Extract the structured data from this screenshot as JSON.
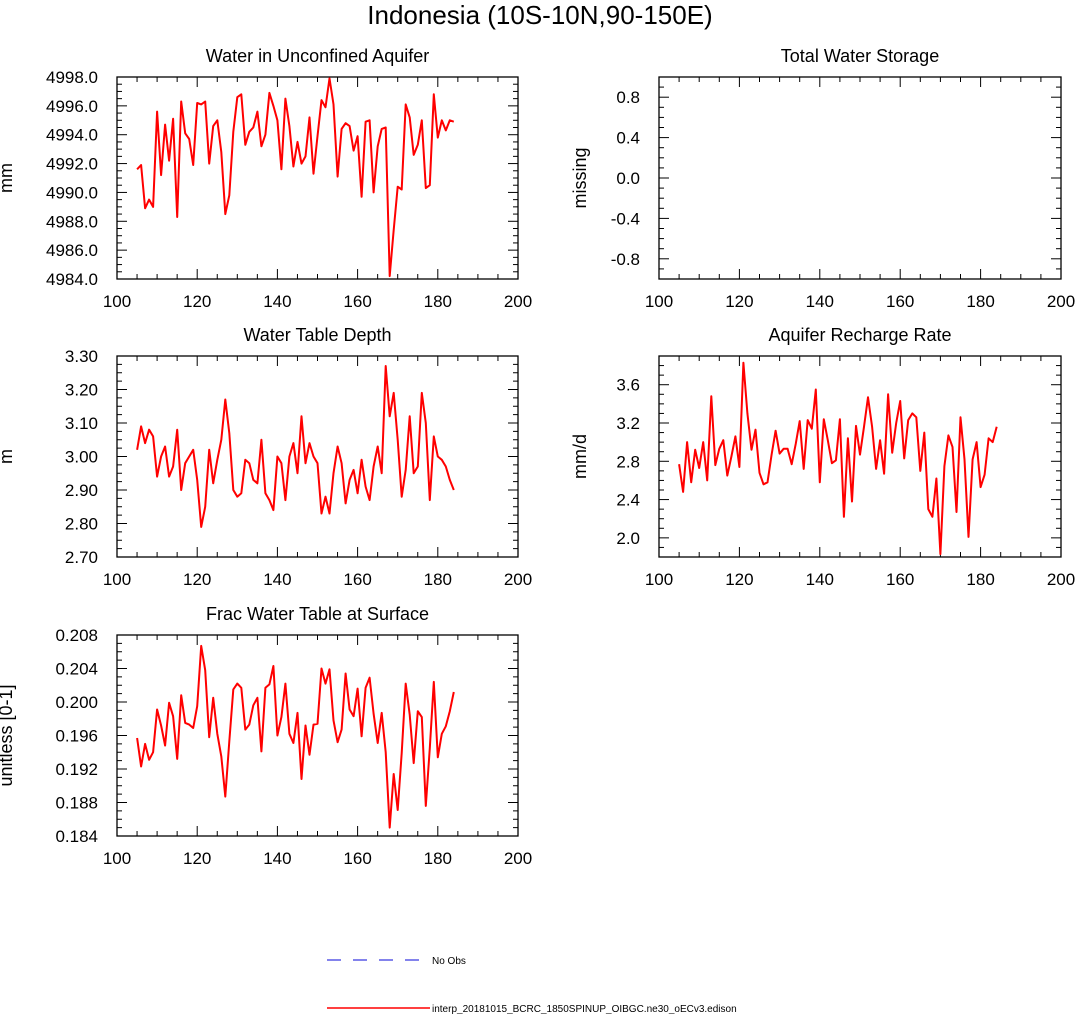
{
  "page": {
    "title": "Indonesia (10S-10N,90-150E)"
  },
  "colors": {
    "model": "#ff0000",
    "obs": "#5a5ae6",
    "axis": "#000000"
  },
  "legend": {
    "obs_label": "No Obs",
    "model_label": "interp_20181015_BCRC_1850SPINUP_OIBGC.ne30_oECv3.edison"
  },
  "chart_data": [
    {
      "type": "line",
      "title": "Water in Unconfined Aquifer",
      "ylabel": "mm",
      "xlim": [
        100,
        200
      ],
      "ylim": [
        4984,
        4998
      ],
      "xticks": [
        "100",
        "120",
        "140",
        "160",
        "180",
        "200"
      ],
      "yticks": [
        "4984.0",
        "4986.0",
        "4988.0",
        "4990.0",
        "4992.0",
        "4994.0",
        "4996.0",
        "4998.0"
      ],
      "series": [
        {
          "x": [
            105,
            106,
            107,
            108,
            109,
            110,
            111,
            112,
            113,
            114,
            115,
            116,
            117,
            118,
            119,
            120,
            121,
            122,
            123,
            124,
            125,
            126,
            127,
            128,
            129,
            130,
            131,
            132,
            133,
            134,
            135,
            136,
            137,
            138,
            139,
            140,
            141,
            142,
            143,
            144,
            145,
            146,
            147,
            148,
            149,
            150,
            151,
            152,
            153,
            154,
            155,
            156,
            157,
            158,
            159,
            160,
            161,
            162,
            163,
            164,
            165,
            166,
            167,
            168,
            169,
            170,
            171,
            172,
            173,
            174,
            175,
            176,
            177,
            178,
            179,
            180,
            181,
            182,
            183,
            184
          ],
          "values": [
            4991.6,
            4991.9,
            4988.9,
            4989.5,
            4989.0,
            4995.6,
            4991.2,
            4994.7,
            4992.2,
            4995.1,
            4988.3,
            4996.3,
            4994.1,
            4993.7,
            4991.9,
            4996.2,
            4996.1,
            4996.3,
            4992.0,
            4994.6,
            4995.0,
            4992.8,
            4988.5,
            4989.8,
            4994.2,
            4996.6,
            4996.8,
            4993.3,
            4994.2,
            4994.5,
            4995.6,
            4993.2,
            4994.0,
            4996.9,
            4996.0,
            4995.0,
            4991.6,
            4996.5,
            4994.6,
            4991.8,
            4993.5,
            4992.0,
            4992.5,
            4995.2,
            4991.3,
            4993.9,
            4996.4,
            4995.9,
            4997.9,
            4996.1,
            4991.1,
            4994.4,
            4994.8,
            4994.6,
            4992.9,
            4993.9,
            4989.7,
            4994.9,
            4995.0,
            4990.0,
            4993.2,
            4994.4,
            4994.5,
            4984.2,
            4987.4,
            4990.4,
            4990.2,
            4996.1,
            4995.2,
            4992.6,
            4993.3,
            4995.0,
            4990.3,
            4990.5,
            4996.8,
            4993.8,
            4995.0,
            4994.3,
            4995.0,
            4994.9
          ]
        }
      ]
    },
    {
      "type": "line",
      "title": "Total Water Storage",
      "ylabel": "missing",
      "xlim": [
        100,
        200
      ],
      "ylim": [
        -1,
        1
      ],
      "xticks": [
        "100",
        "120",
        "140",
        "160",
        "180",
        "200"
      ],
      "yticks": [
        "-0.8",
        "-0.4",
        "0.0",
        "0.4",
        "0.8"
      ],
      "series": []
    },
    {
      "type": "line",
      "title": "Water Table Depth",
      "ylabel": "m",
      "xlim": [
        100,
        200
      ],
      "ylim": [
        2.7,
        3.3
      ],
      "xticks": [
        "100",
        "120",
        "140",
        "160",
        "180",
        "200"
      ],
      "yticks": [
        "2.70",
        "2.80",
        "2.90",
        "3.00",
        "3.10",
        "3.20",
        "3.30"
      ],
      "series": [
        {
          "x": [
            105,
            106,
            107,
            108,
            109,
            110,
            111,
            112,
            113,
            114,
            115,
            116,
            117,
            118,
            119,
            120,
            121,
            122,
            123,
            124,
            125,
            126,
            127,
            128,
            129,
            130,
            131,
            132,
            133,
            134,
            135,
            136,
            137,
            138,
            139,
            140,
            141,
            142,
            143,
            144,
            145,
            146,
            147,
            148,
            149,
            150,
            151,
            152,
            153,
            154,
            155,
            156,
            157,
            158,
            159,
            160,
            161,
            162,
            163,
            164,
            165,
            166,
            167,
            168,
            169,
            170,
            171,
            172,
            173,
            174,
            175,
            176,
            177,
            178,
            179,
            180,
            181,
            182,
            183,
            184
          ],
          "values": [
            3.02,
            3.09,
            3.04,
            3.08,
            3.06,
            2.94,
            3.0,
            3.03,
            2.94,
            2.97,
            3.08,
            2.9,
            2.98,
            3.0,
            3.02,
            2.93,
            2.79,
            2.85,
            3.02,
            2.92,
            2.99,
            3.05,
            3.17,
            3.07,
            2.9,
            2.88,
            2.89,
            2.99,
            2.98,
            2.93,
            2.92,
            3.05,
            2.89,
            2.87,
            2.84,
            3.0,
            2.98,
            2.87,
            3.0,
            3.04,
            2.95,
            3.12,
            2.98,
            3.04,
            3.0,
            2.98,
            2.83,
            2.88,
            2.83,
            2.95,
            3.03,
            2.98,
            2.86,
            2.93,
            2.96,
            2.89,
            2.99,
            2.91,
            2.87,
            2.97,
            3.03,
            2.95,
            3.27,
            3.12,
            3.19,
            3.05,
            2.88,
            2.96,
            3.12,
            2.95,
            2.97,
            3.19,
            3.1,
            2.87,
            3.06,
            3.0,
            2.99,
            2.97,
            2.93,
            2.9
          ]
        }
      ]
    },
    {
      "type": "line",
      "title": "Aquifer Recharge Rate",
      "ylabel": "mm/d",
      "xlim": [
        100,
        200
      ],
      "ylim": [
        1.8,
        3.9
      ],
      "xticks": [
        "100",
        "120",
        "140",
        "160",
        "180",
        "200"
      ],
      "yticks": [
        "2.0",
        "2.4",
        "2.8",
        "3.2",
        "3.6"
      ],
      "series": [
        {
          "x": [
            105,
            106,
            107,
            108,
            109,
            110,
            111,
            112,
            113,
            114,
            115,
            116,
            117,
            118,
            119,
            120,
            121,
            122,
            123,
            124,
            125,
            126,
            127,
            128,
            129,
            130,
            131,
            132,
            133,
            134,
            135,
            136,
            137,
            138,
            139,
            140,
            141,
            142,
            143,
            144,
            145,
            146,
            147,
            148,
            149,
            150,
            151,
            152,
            153,
            154,
            155,
            156,
            157,
            158,
            159,
            160,
            161,
            162,
            163,
            164,
            165,
            166,
            167,
            168,
            169,
            170,
            171,
            172,
            173,
            174,
            175,
            176,
            177,
            178,
            179,
            180,
            181,
            182,
            183,
            184
          ],
          "values": [
            2.77,
            2.48,
            3.0,
            2.58,
            2.92,
            2.73,
            3.0,
            2.6,
            3.48,
            2.76,
            2.93,
            3.02,
            2.65,
            2.85,
            3.06,
            2.74,
            3.83,
            3.3,
            2.92,
            3.13,
            2.68,
            2.56,
            2.58,
            2.87,
            3.12,
            2.88,
            2.93,
            2.93,
            2.77,
            2.98,
            3.22,
            2.72,
            3.23,
            3.14,
            3.55,
            2.58,
            3.24,
            3.02,
            2.78,
            2.81,
            3.24,
            2.22,
            3.04,
            2.38,
            3.17,
            2.87,
            3.16,
            3.47,
            3.16,
            2.72,
            3.02,
            2.67,
            3.5,
            2.89,
            3.2,
            3.43,
            2.83,
            3.23,
            3.3,
            3.26,
            2.7,
            3.1,
            2.3,
            2.22,
            2.62,
            1.83,
            2.75,
            3.07,
            2.95,
            2.27,
            3.26,
            2.82,
            2.01,
            2.82,
            3.0,
            2.53,
            2.66,
            3.04,
            3.0,
            3.16
          ]
        }
      ]
    },
    {
      "type": "line",
      "title": "Frac Water Table at Surface",
      "ylabel": "unitless [0-1]",
      "xlim": [
        100,
        200
      ],
      "ylim": [
        0.184,
        0.208
      ],
      "xticks": [
        "100",
        "120",
        "140",
        "160",
        "180",
        "200"
      ],
      "yticks": [
        "0.184",
        "0.188",
        "0.192",
        "0.196",
        "0.200",
        "0.204",
        "0.208"
      ],
      "series": [
        {
          "x": [
            105,
            106,
            107,
            108,
            109,
            110,
            111,
            112,
            113,
            114,
            115,
            116,
            117,
            118,
            119,
            120,
            121,
            122,
            123,
            124,
            125,
            126,
            127,
            128,
            129,
            130,
            131,
            132,
            133,
            134,
            135,
            136,
            137,
            138,
            139,
            140,
            141,
            142,
            143,
            144,
            145,
            146,
            147,
            148,
            149,
            150,
            151,
            152,
            153,
            154,
            155,
            156,
            157,
            158,
            159,
            160,
            161,
            162,
            163,
            164,
            165,
            166,
            167,
            168,
            169,
            170,
            171,
            172,
            173,
            174,
            175,
            176,
            177,
            178,
            179,
            180,
            181,
            182,
            183,
            184
          ],
          "values": [
            0.1957,
            0.1923,
            0.195,
            0.1931,
            0.194,
            0.1991,
            0.1972,
            0.1948,
            0.1999,
            0.1983,
            0.1932,
            0.2008,
            0.1975,
            0.1973,
            0.1969,
            0.1995,
            0.2067,
            0.2038,
            0.1958,
            0.2005,
            0.1962,
            0.1935,
            0.1887,
            0.1953,
            0.2015,
            0.2022,
            0.2017,
            0.1967,
            0.1973,
            0.1996,
            0.2005,
            0.1941,
            0.2017,
            0.2021,
            0.2043,
            0.196,
            0.1982,
            0.2022,
            0.1962,
            0.1951,
            0.1987,
            0.1908,
            0.1972,
            0.1937,
            0.1973,
            0.1974,
            0.204,
            0.2022,
            0.2039,
            0.1978,
            0.1952,
            0.1967,
            0.2034,
            0.1991,
            0.1983,
            0.2016,
            0.1959,
            0.2017,
            0.2029,
            0.1986,
            0.1951,
            0.1987,
            0.194,
            0.185,
            0.1914,
            0.1871,
            0.1939,
            0.2022,
            0.1985,
            0.1927,
            0.1989,
            0.1982,
            0.1876,
            0.1945,
            0.2024,
            0.1934,
            0.1962,
            0.1971,
            0.1989,
            0.2012
          ]
        }
      ]
    }
  ]
}
